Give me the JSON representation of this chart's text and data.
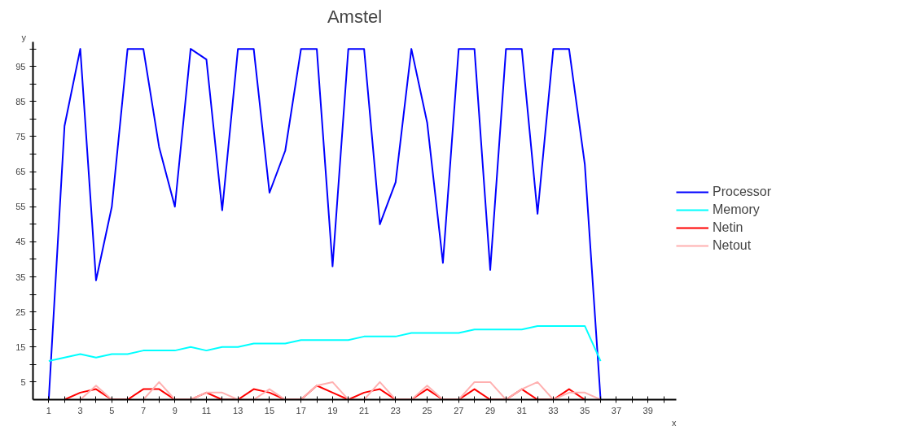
{
  "chart_data": {
    "type": "line",
    "title": "Amstel",
    "xlabel": "x",
    "ylabel": "y",
    "x": [
      1,
      2,
      3,
      4,
      5,
      6,
      7,
      8,
      9,
      10,
      11,
      12,
      13,
      14,
      15,
      16,
      17,
      18,
      19,
      20,
      21,
      22,
      23,
      24,
      25,
      26,
      27,
      28,
      29,
      30,
      31,
      32,
      33,
      34,
      35,
      36
    ],
    "series": [
      {
        "name": "Processor",
        "color": "#0000ff",
        "values": [
          0,
          78,
          100,
          34,
          55,
          100,
          100,
          72,
          55,
          100,
          97,
          54,
          100,
          100,
          59,
          71,
          100,
          100,
          38,
          100,
          100,
          50,
          62,
          100,
          79,
          39,
          100,
          100,
          37,
          100,
          100,
          53,
          100,
          100,
          67,
          0
        ]
      },
      {
        "name": "Memory",
        "color": "#00ffff",
        "values": [
          11,
          12,
          13,
          12,
          13,
          13,
          14,
          14,
          14,
          15,
          14,
          15,
          15,
          16,
          16,
          16,
          17,
          17,
          17,
          17,
          18,
          18,
          18,
          19,
          19,
          19,
          19,
          20,
          20,
          20,
          20,
          21,
          21,
          21,
          21,
          11
        ]
      },
      {
        "name": "Netin",
        "color": "#ff0000",
        "values": [
          null,
          0,
          2,
          3,
          0,
          0,
          3,
          3,
          0,
          0,
          2,
          0,
          0,
          3,
          2,
          0,
          0,
          4,
          2,
          0,
          2,
          3,
          0,
          0,
          3,
          0,
          0,
          3,
          0,
          0,
          3,
          0,
          0,
          3,
          0,
          null
        ]
      },
      {
        "name": "Netout",
        "color": "#ffb0b0",
        "values": [
          null,
          null,
          0,
          4,
          0,
          null,
          0,
          5,
          0,
          0,
          2,
          2,
          0,
          0,
          3,
          0,
          0,
          4,
          5,
          0,
          0,
          5,
          0,
          0,
          4,
          0,
          0,
          5,
          5,
          0,
          3,
          5,
          0,
          2,
          2,
          0
        ]
      }
    ],
    "xlim": [
      0,
      40.8
    ],
    "ylim": [
      0,
      102
    ],
    "xticks": [
      1,
      {
        "value": 2,
        "label": null
      },
      3,
      {
        "value": 4,
        "label": null
      },
      5,
      {
        "value": 6,
        "label": null
      },
      7,
      {
        "value": 8,
        "label": null
      },
      9,
      {
        "value": 10,
        "label": null
      },
      11,
      {
        "value": 12,
        "label": null
      },
      13,
      {
        "value": 14,
        "label": null
      },
      15,
      {
        "value": 16,
        "label": null
      },
      17,
      {
        "value": 18,
        "label": null
      },
      19,
      {
        "value": 20,
        "label": null
      },
      21,
      {
        "value": 22,
        "label": null
      },
      23,
      {
        "value": 24,
        "label": null
      },
      25,
      {
        "value": 26,
        "label": null
      },
      27,
      {
        "value": 28,
        "label": null
      },
      29,
      {
        "value": 30,
        "label": null
      },
      31,
      {
        "value": 32,
        "label": null
      },
      33,
      {
        "value": 34,
        "label": null
      },
      35,
      {
        "value": 36,
        "label": null
      },
      37,
      {
        "value": 38,
        "label": null
      },
      39,
      {
        "value": 40,
        "label": null
      }
    ],
    "yticks": [
      5,
      {
        "value": 10,
        "label": null
      },
      15,
      {
        "value": 20,
        "label": null
      },
      25,
      {
        "value": 30,
        "label": null
      },
      35,
      {
        "value": 40,
        "label": null
      },
      45,
      {
        "value": 50,
        "label": null
      },
      55,
      {
        "value": 60,
        "label": null
      },
      65,
      {
        "value": 70,
        "label": null
      },
      75,
      {
        "value": 80,
        "label": null
      },
      85,
      {
        "value": 90,
        "label": null
      },
      95,
      {
        "value": 100,
        "label": null
      }
    ],
    "grid": false,
    "legend": "right",
    "marker": "none",
    "line_style": "solid"
  }
}
